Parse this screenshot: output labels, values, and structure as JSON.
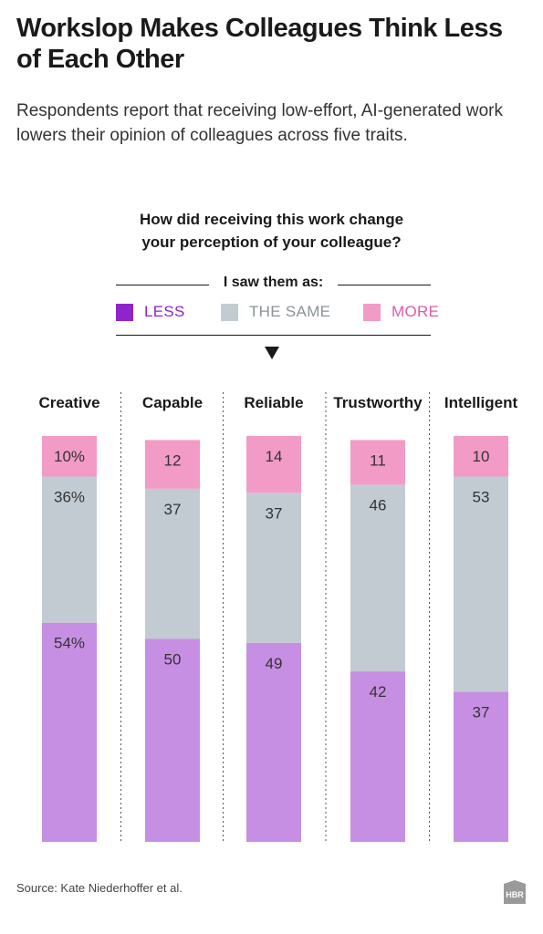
{
  "header": {
    "title": "Workslop Makes Colleagues Think Less of Each Other",
    "subtitle": "Respondents report that receiving low-effort, AI-generated work lowers their opinion of colleagues across five traits."
  },
  "question": {
    "line1": "How did receiving this work change",
    "line2": "your perception of your colleague?"
  },
  "legend": {
    "heading": "I saw them as:",
    "items": [
      {
        "label": "LESS",
        "color": "#8e24c9",
        "text_color": "#8e24c9"
      },
      {
        "label": "THE SAME",
        "color": "#c2cbd1",
        "text_color": "#8a9399"
      },
      {
        "label": "MORE",
        "color": "#f29bc6",
        "text_color": "#e05aa8"
      }
    ]
  },
  "chart_data": {
    "type": "bar",
    "stacked": true,
    "orientation": "vertical",
    "categories": [
      "Creative",
      "Capable",
      "Reliable",
      "Trustworthy",
      "Intelligent"
    ],
    "series": [
      {
        "name": "LESS",
        "color": "#c78fe3",
        "values": [
          54,
          50,
          49,
          42,
          37
        ]
      },
      {
        "name": "THE SAME",
        "color": "#c2cbd1",
        "values": [
          36,
          37,
          37,
          46,
          53
        ]
      },
      {
        "name": "MORE",
        "color": "#f29bc6",
        "values": [
          10,
          12,
          14,
          11,
          10
        ]
      }
    ],
    "labels": [
      [
        "54%",
        "50",
        "49",
        "42",
        "37"
      ],
      [
        "36%",
        "37",
        "37",
        "46",
        "53"
      ],
      [
        "10%",
        "12",
        "14",
        "11",
        "10"
      ]
    ],
    "ylim": [
      0,
      100
    ],
    "grid": false,
    "legend_position": "top"
  },
  "footer": {
    "source": "Source: Kate Niederhoffer et al.",
    "logo_text": "HBR"
  }
}
